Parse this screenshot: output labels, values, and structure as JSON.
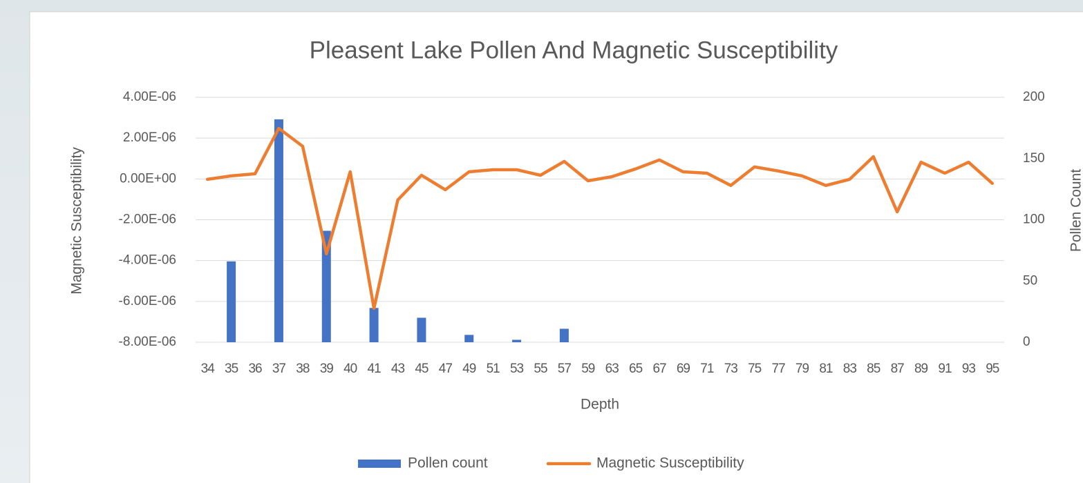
{
  "chart_data": {
    "type": "bar-line",
    "title": "Pleasent Lake Pollen And Magnetic Susceptibility",
    "x_label": "Depth",
    "y_label": "Magnetic Susceptibility",
    "y2_label": "Pollen Count",
    "categories": [
      "34",
      "35",
      "36",
      "37",
      "38",
      "39",
      "40",
      "41",
      "43",
      "45",
      "47",
      "49",
      "51",
      "53",
      "55",
      "57",
      "59",
      "63",
      "65",
      "67",
      "69",
      "71",
      "73",
      "75",
      "77",
      "79",
      "81",
      "83",
      "85",
      "87",
      "89",
      "91",
      "93",
      "95"
    ],
    "ylim": [
      -8e-06,
      4e-06
    ],
    "yticks": [
      {
        "value": -8e-06,
        "label": "-8.00E-06"
      },
      {
        "value": -6e-06,
        "label": "-6.00E-06"
      },
      {
        "value": -4e-06,
        "label": "-4.00E-06"
      },
      {
        "value": -2e-06,
        "label": "-2.00E-06"
      },
      {
        "value": 0,
        "label": "0.00E+00"
      },
      {
        "value": 2e-06,
        "label": "2.00E-06"
      },
      {
        "value": 4e-06,
        "label": "4.00E-06"
      }
    ],
    "y2lim": [
      0,
      200
    ],
    "y2ticks": [
      0,
      50,
      100,
      150,
      200
    ],
    "grid": true,
    "legend": "bottom",
    "series": [
      {
        "name": "Pollen count",
        "type": "bar",
        "axis": "y2",
        "color": "#4472c4",
        "values": [
          null,
          66,
          null,
          182,
          null,
          91,
          null,
          28,
          null,
          20,
          null,
          6,
          null,
          2,
          null,
          11,
          null,
          null,
          null,
          null,
          null,
          null,
          null,
          null,
          null,
          null,
          null,
          null,
          null,
          null,
          null,
          null,
          null,
          null
        ]
      },
      {
        "name": "Magnetic Susceptibility",
        "type": "line",
        "axis": "y",
        "color": "#ed7d31",
        "values": [
          -2e-08,
          1.5e-07,
          2.5e-07,
          2.48e-06,
          1.6e-06,
          -3.67e-06,
          3.5e-07,
          -6.34e-06,
          -1.03e-06,
          1.8e-07,
          -5.3e-07,
          3.5e-07,
          4.5e-07,
          4.5e-07,
          1.8e-07,
          8.6e-07,
          -9e-08,
          1.1e-07,
          4.9e-07,
          9.3e-07,
          3.5e-07,
          2.8e-07,
          -3.2e-07,
          5.9e-07,
          3.9e-07,
          1.5e-07,
          -3.2e-07,
          -2e-08,
          1.09e-06,
          -1.61e-06,
          8.2e-07,
          2.8e-07,
          8.2e-07,
          -2.2e-07
        ]
      }
    ]
  }
}
